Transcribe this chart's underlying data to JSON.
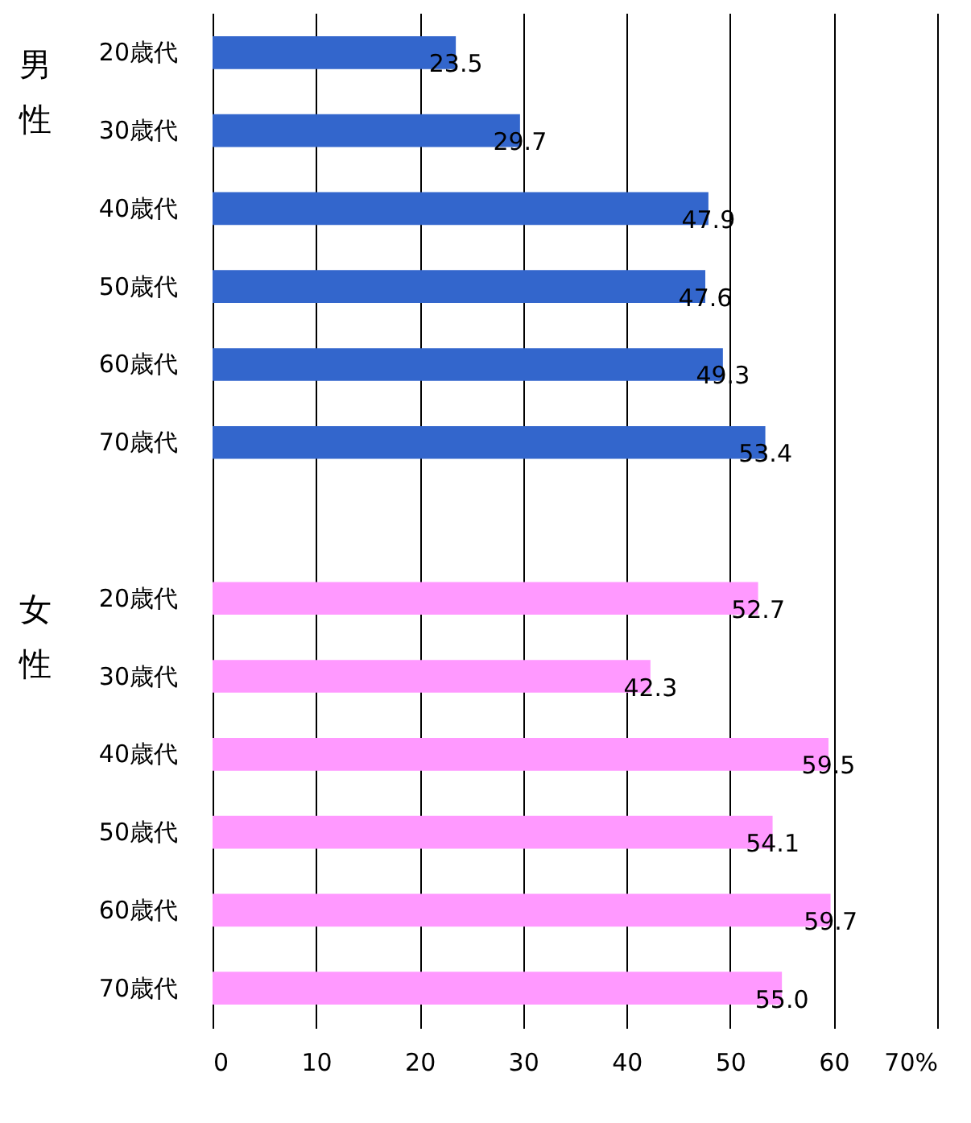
{
  "chart_data": {
    "type": "bar",
    "orientation": "horizontal",
    "categories": [
      "20歳代",
      "30歳代",
      "40歳代",
      "50歳代",
      "60歳代",
      "70歳代",
      null,
      "20歳代",
      "30歳代",
      "40歳代",
      "50歳代",
      "60歳代",
      "70歳代"
    ],
    "values": [
      23.5,
      29.7,
      47.9,
      47.6,
      49.3,
      53.4,
      null,
      52.7,
      42.3,
      59.5,
      54.1,
      59.7,
      55.0
    ],
    "colors": [
      "#3366cc",
      "#3366cc",
      "#3366cc",
      "#3366cc",
      "#3366cc",
      "#3366cc",
      "#3366cc",
      "#ff99ff",
      "#ff99ff",
      "#ff99ff",
      "#ff99ff",
      "#ff99ff",
      "#ff99ff"
    ],
    "value_labels": [
      "23.5",
      "29.7",
      "47.9",
      "47.6",
      "49.3",
      "53.4",
      null,
      "52.7",
      "42.3",
      "59.5",
      "54.1",
      "59.7",
      "55.0"
    ],
    "xlim": [
      0,
      70
    ],
    "xticks": [
      0,
      10,
      20,
      30,
      40,
      50,
      60,
      {
        "value": 70,
        "label": "70%"
      }
    ],
    "grid": "x",
    "annotations": [
      "男性",
      "女性"
    ]
  }
}
